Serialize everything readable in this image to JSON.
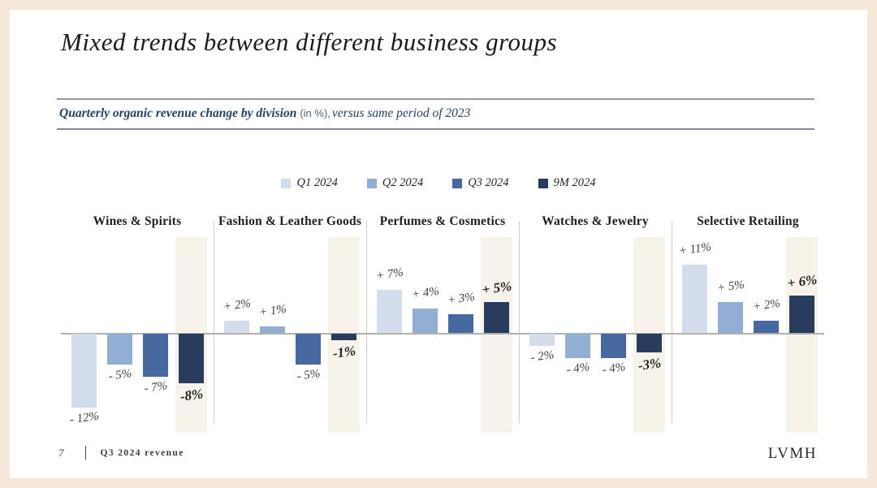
{
  "title": "Mixed trends between different business groups",
  "subtitle": {
    "main": "Quarterly organic revenue change by division",
    "unit_note": "(in %),",
    "comparison": "versus same period of 2023"
  },
  "footer": {
    "page_number": "7",
    "document_title": "Q3 2024 revenue",
    "brand": "LVMH"
  },
  "colors": {
    "frame": "#f5e8d8",
    "card": "#ffffff",
    "subtitle_navy": "#27415f",
    "highlight_band": "#f8f3ea",
    "axis_line": "#b3b1ad",
    "group_separator": "#d8cfc3"
  },
  "chart_data": {
    "type": "bar",
    "title": "Quarterly organic revenue change by division (in %), versus same period of 2023",
    "unit": "%",
    "grid": false,
    "legend_position": "top-center",
    "baseline": 0,
    "ylim": [
      -13,
      12
    ],
    "categories": [
      "Wines & Spirits",
      "Fashion & Leather Goods",
      "Perfumes & Cosmetics",
      "Watches & Jewelry",
      "Selective Retailing"
    ],
    "series": [
      {
        "name": "Q1 2024",
        "color": "#d3dcea",
        "values": [
          -12,
          2,
          7,
          -2,
          11
        ],
        "labels": [
          "- 12%",
          "+ 2%",
          "+ 7%",
          "- 2%",
          "+ 11%"
        ],
        "emphasized": false
      },
      {
        "name": "Q2 2024",
        "color": "#92aed3",
        "values": [
          -5,
          1,
          4,
          -4,
          5
        ],
        "labels": [
          "- 5%",
          "+ 1%",
          "+ 4%",
          "- 4%",
          "+ 5%"
        ],
        "emphasized": false
      },
      {
        "name": "Q3 2024",
        "color": "#46699f",
        "values": [
          -7,
          -5,
          3,
          -4,
          2
        ],
        "labels": [
          "- 7%",
          "- 5%",
          "+ 3%",
          "- 4%",
          "+ 2%"
        ],
        "emphasized": false
      },
      {
        "name": "9M 2024",
        "color": "#283d5e",
        "values": [
          -8,
          -1,
          5,
          -3,
          6
        ],
        "labels": [
          "-8%",
          "-1%",
          "+ 5%",
          "-3%",
          "+ 6%"
        ],
        "emphasized": true
      }
    ],
    "highlighted_series": "9M 2024"
  }
}
